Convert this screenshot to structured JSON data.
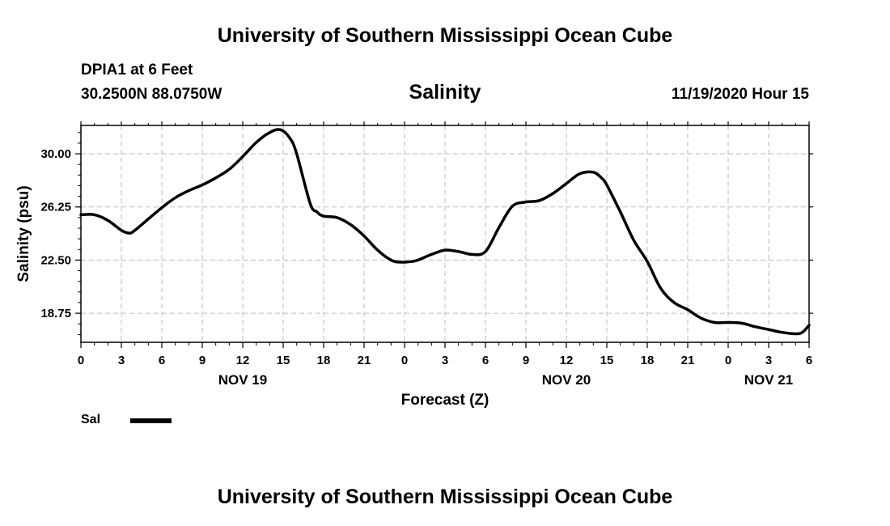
{
  "header": {
    "title": "University of Southern Mississippi Ocean Cube",
    "station": "DPIA1 at 6 Feet",
    "location": "30.2500N 88.0750W",
    "parameter": "Salinity",
    "timestamp": "11/19/2020 Hour 15"
  },
  "footer": {
    "title": "University of Southern Mississippi Ocean Cube"
  },
  "legend": {
    "series_label": "Sal",
    "color": "#000000"
  },
  "chart_data": {
    "type": "line",
    "title": "Salinity",
    "xlabel": "Forecast (Z)",
    "ylabel": "Salinity (psu)",
    "x_units": "hours since 2020-11-19 00Z",
    "xlim": [
      0,
      54
    ],
    "ylim": [
      16.7,
      32.0
    ],
    "grid": true,
    "grid_style": "dashed",
    "y_ticks": [
      18.75,
      22.5,
      26.25,
      30.0
    ],
    "y_tick_labels": [
      "18.75",
      "22.50",
      "26.25",
      "30.00"
    ],
    "x_ticks": [
      0,
      3,
      6,
      9,
      12,
      15,
      18,
      21,
      24,
      27,
      30,
      33,
      36,
      39,
      42,
      45,
      48,
      51,
      54
    ],
    "x_tick_labels": [
      "0",
      "3",
      "6",
      "9",
      "12",
      "15",
      "18",
      "21",
      "0",
      "3",
      "6",
      "9",
      "12",
      "15",
      "18",
      "21",
      "0",
      "3",
      "6"
    ],
    "date_labels": [
      {
        "x": 12,
        "label": "NOV 19"
      },
      {
        "x": 36,
        "label": "NOV 20"
      },
      {
        "x": 51,
        "label": "NOV 21"
      }
    ],
    "series": [
      {
        "name": "Sal",
        "x": [
          0,
          1,
          2,
          3,
          3.6,
          4,
          5,
          6,
          7,
          8,
          9,
          10,
          11,
          12,
          13,
          14,
          14.8,
          15.5,
          16,
          17,
          17.5,
          18,
          19,
          20,
          21,
          22,
          23,
          23.7,
          24.5,
          25,
          26,
          27,
          28,
          29,
          30,
          31,
          32,
          33,
          34,
          35,
          36,
          37,
          38,
          38.6,
          39,
          40,
          41,
          42,
          43,
          44,
          45,
          46,
          47,
          48,
          49,
          50,
          51,
          52,
          53,
          53.5,
          54
        ],
        "values": [
          25.7,
          25.7,
          25.3,
          24.6,
          24.4,
          24.6,
          25.4,
          26.2,
          26.9,
          27.4,
          27.8,
          28.3,
          28.9,
          29.8,
          30.8,
          31.5,
          31.7,
          31.1,
          30.0,
          26.5,
          25.9,
          25.6,
          25.5,
          25.0,
          24.2,
          23.2,
          22.5,
          22.35,
          22.4,
          22.5,
          22.9,
          23.2,
          23.1,
          22.9,
          23.1,
          24.8,
          26.3,
          26.6,
          26.7,
          27.2,
          27.9,
          28.6,
          28.7,
          28.3,
          27.8,
          25.9,
          23.9,
          22.4,
          20.5,
          19.5,
          19.0,
          18.4,
          18.1,
          18.1,
          18.05,
          17.8,
          17.6,
          17.4,
          17.3,
          17.4,
          17.9
        ]
      }
    ]
  }
}
